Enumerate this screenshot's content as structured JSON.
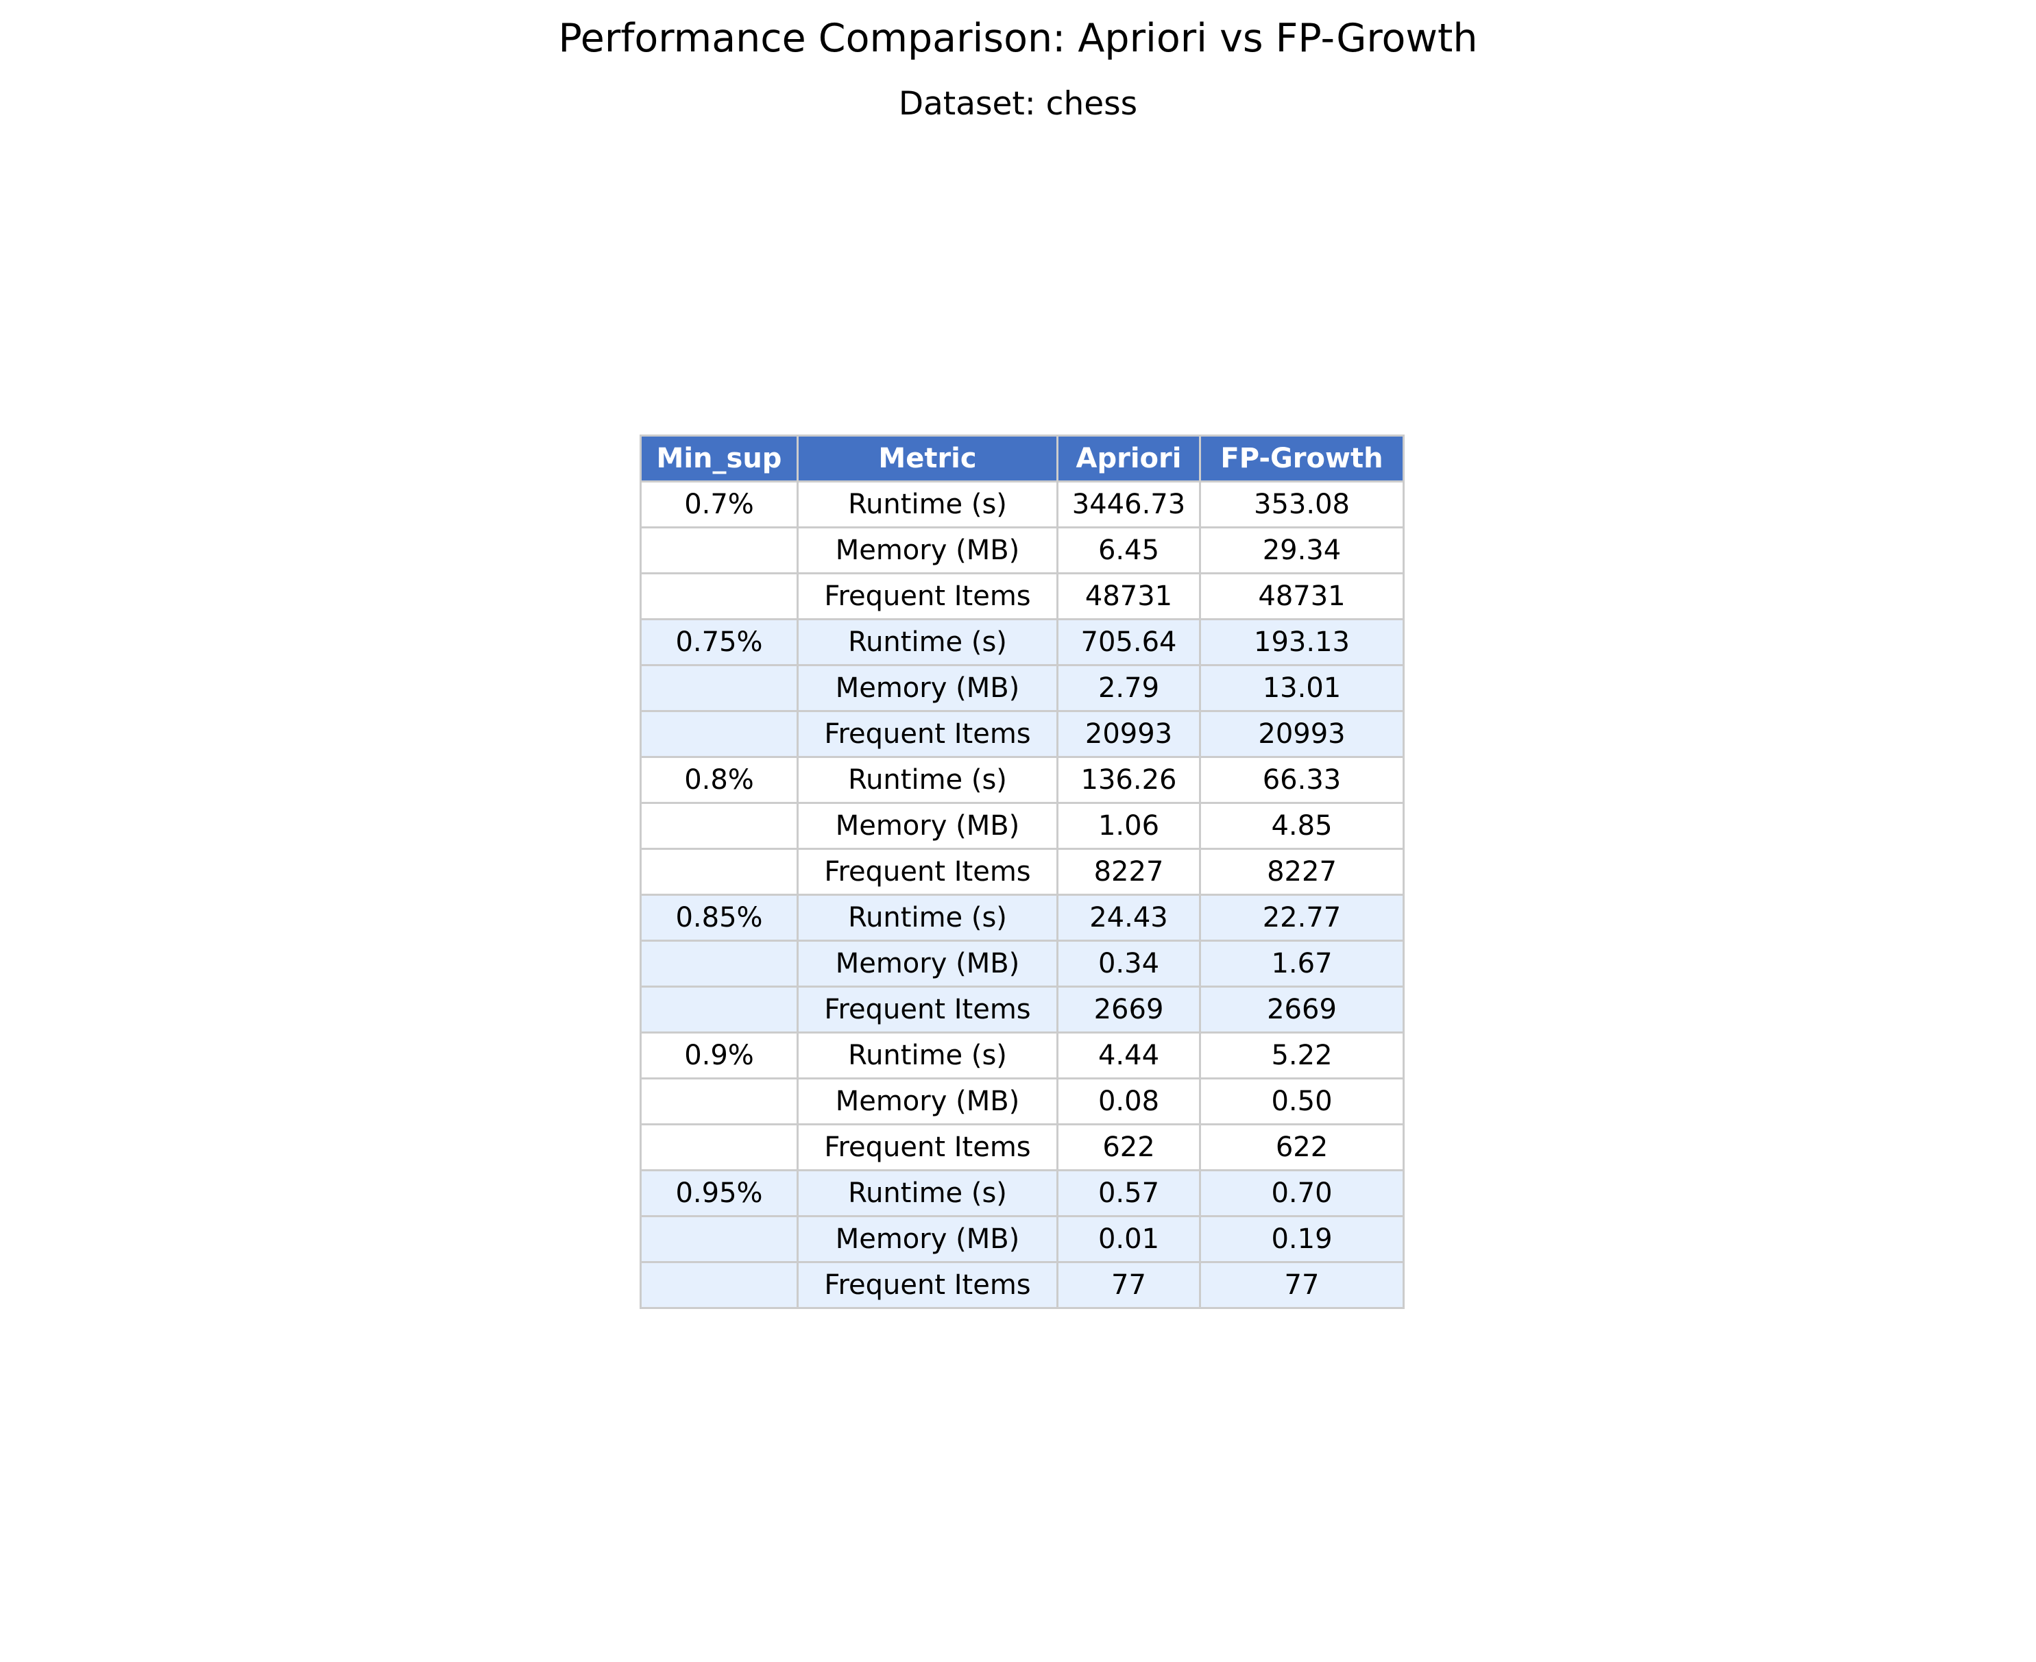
{
  "chart_data": {
    "type": "table",
    "title": "Performance Comparison: Apriori vs FP-Growth",
    "subtitle": "Dataset: chess",
    "columns": [
      "Min_sup",
      "Metric",
      "Apriori",
      "FP-Growth"
    ],
    "rows": [
      [
        "0.7%",
        "Runtime (s)",
        "3446.73",
        "353.08"
      ],
      [
        "",
        "Memory (MB)",
        "6.45",
        "29.34"
      ],
      [
        "",
        "Frequent Items",
        "48731",
        "48731"
      ],
      [
        "0.75%",
        "Runtime (s)",
        "705.64",
        "193.13"
      ],
      [
        "",
        "Memory (MB)",
        "2.79",
        "13.01"
      ],
      [
        "",
        "Frequent Items",
        "20993",
        "20993"
      ],
      [
        "0.8%",
        "Runtime (s)",
        "136.26",
        "66.33"
      ],
      [
        "",
        "Memory (MB)",
        "1.06",
        "4.85"
      ],
      [
        "",
        "Frequent Items",
        "8227",
        "8227"
      ],
      [
        "0.85%",
        "Runtime (s)",
        "24.43",
        "22.77"
      ],
      [
        "",
        "Memory (MB)",
        "0.34",
        "1.67"
      ],
      [
        "",
        "Frequent Items",
        "2669",
        "2669"
      ],
      [
        "0.9%",
        "Runtime (s)",
        "4.44",
        "5.22"
      ],
      [
        "",
        "Memory (MB)",
        "0.08",
        "0.50"
      ],
      [
        "",
        "Frequent Items",
        "622",
        "622"
      ],
      [
        "0.95%",
        "Runtime (s)",
        "0.57",
        "0.70"
      ],
      [
        "",
        "Memory (MB)",
        "0.01",
        "0.19"
      ],
      [
        "",
        "Frequent Items",
        "77",
        "77"
      ]
    ],
    "colors": {
      "header_background": "#4472c4",
      "header_text": "#ffffff",
      "band_a": "#ffffff",
      "band_b": "#e6f0fd",
      "border": "#cccccc"
    }
  }
}
